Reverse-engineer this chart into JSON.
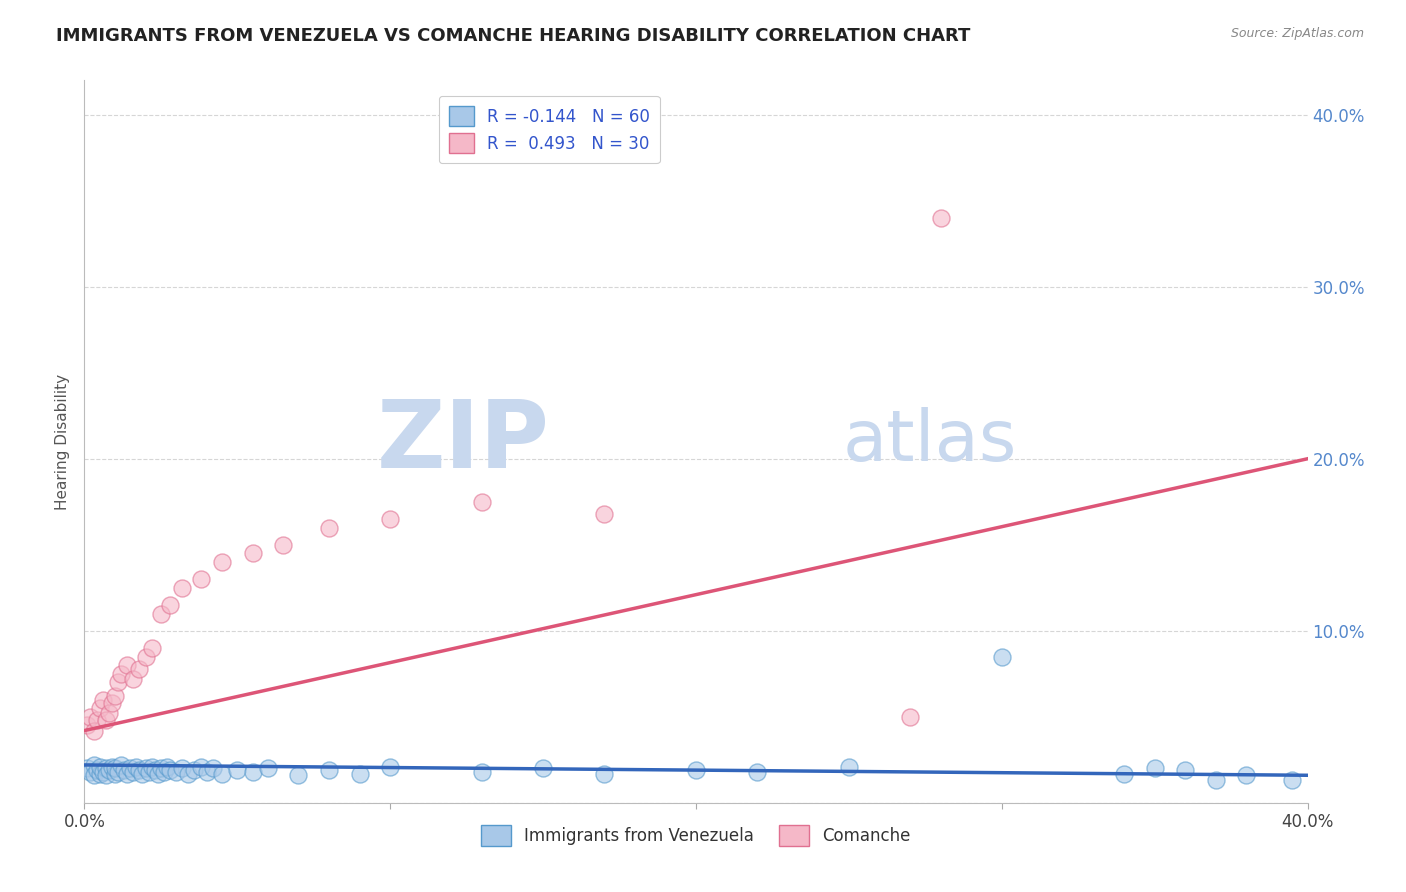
{
  "title": "IMMIGRANTS FROM VENEZUELA VS COMANCHE HEARING DISABILITY CORRELATION CHART",
  "source": "Source: ZipAtlas.com",
  "ylabel": "Hearing Disability",
  "xlim": [
    0.0,
    0.4
  ],
  "ylim": [
    0.0,
    0.42
  ],
  "x_ticks": [
    0.0,
    0.1,
    0.2,
    0.3,
    0.4
  ],
  "y_ticks": [
    0.0,
    0.1,
    0.2,
    0.3,
    0.4
  ],
  "legend1_label": "R = -0.144   N = 60",
  "legend2_label": "R =  0.493   N = 30",
  "blue_color": "#a8c8e8",
  "pink_color": "#f5b8c8",
  "blue_edge_color": "#5599cc",
  "pink_edge_color": "#e07090",
  "blue_line_color": "#3366bb",
  "pink_line_color": "#dd5577",
  "watermark_color": "#c8d8ee",
  "blue_points_x": [
    0.001,
    0.002,
    0.003,
    0.003,
    0.004,
    0.005,
    0.005,
    0.006,
    0.007,
    0.007,
    0.008,
    0.009,
    0.01,
    0.01,
    0.011,
    0.012,
    0.013,
    0.014,
    0.015,
    0.016,
    0.017,
    0.018,
    0.019,
    0.02,
    0.021,
    0.022,
    0.023,
    0.024,
    0.025,
    0.026,
    0.027,
    0.028,
    0.03,
    0.032,
    0.034,
    0.036,
    0.038,
    0.04,
    0.042,
    0.045,
    0.05,
    0.055,
    0.06,
    0.07,
    0.08,
    0.09,
    0.1,
    0.13,
    0.15,
    0.17,
    0.2,
    0.22,
    0.25,
    0.3,
    0.34,
    0.35,
    0.36,
    0.37,
    0.38,
    0.395
  ],
  "blue_points_y": [
    0.02,
    0.018,
    0.022,
    0.016,
    0.019,
    0.017,
    0.021,
    0.018,
    0.02,
    0.016,
    0.019,
    0.021,
    0.017,
    0.02,
    0.018,
    0.022,
    0.019,
    0.017,
    0.02,
    0.018,
    0.021,
    0.019,
    0.017,
    0.02,
    0.018,
    0.021,
    0.019,
    0.017,
    0.02,
    0.018,
    0.021,
    0.019,
    0.018,
    0.02,
    0.017,
    0.019,
    0.021,
    0.018,
    0.02,
    0.017,
    0.019,
    0.018,
    0.02,
    0.016,
    0.019,
    0.017,
    0.021,
    0.018,
    0.02,
    0.017,
    0.019,
    0.018,
    0.021,
    0.085,
    0.017,
    0.02,
    0.019,
    0.013,
    0.016,
    0.013
  ],
  "pink_points_x": [
    0.001,
    0.002,
    0.003,
    0.004,
    0.005,
    0.006,
    0.007,
    0.008,
    0.009,
    0.01,
    0.011,
    0.012,
    0.014,
    0.016,
    0.018,
    0.02,
    0.022,
    0.025,
    0.028,
    0.032,
    0.038,
    0.045,
    0.055,
    0.065,
    0.08,
    0.1,
    0.13,
    0.17,
    0.27,
    0.28
  ],
  "pink_points_y": [
    0.045,
    0.05,
    0.042,
    0.048,
    0.055,
    0.06,
    0.048,
    0.052,
    0.058,
    0.062,
    0.07,
    0.075,
    0.08,
    0.072,
    0.078,
    0.085,
    0.09,
    0.11,
    0.115,
    0.125,
    0.13,
    0.14,
    0.145,
    0.15,
    0.16,
    0.165,
    0.175,
    0.168,
    0.05,
    0.34
  ],
  "blue_regression": {
    "x_start": 0.0,
    "y_start": 0.022,
    "x_end": 0.4,
    "y_end": 0.016
  },
  "pink_regression": {
    "x_start": 0.0,
    "y_start": 0.042,
    "x_end": 0.4,
    "y_end": 0.2
  }
}
